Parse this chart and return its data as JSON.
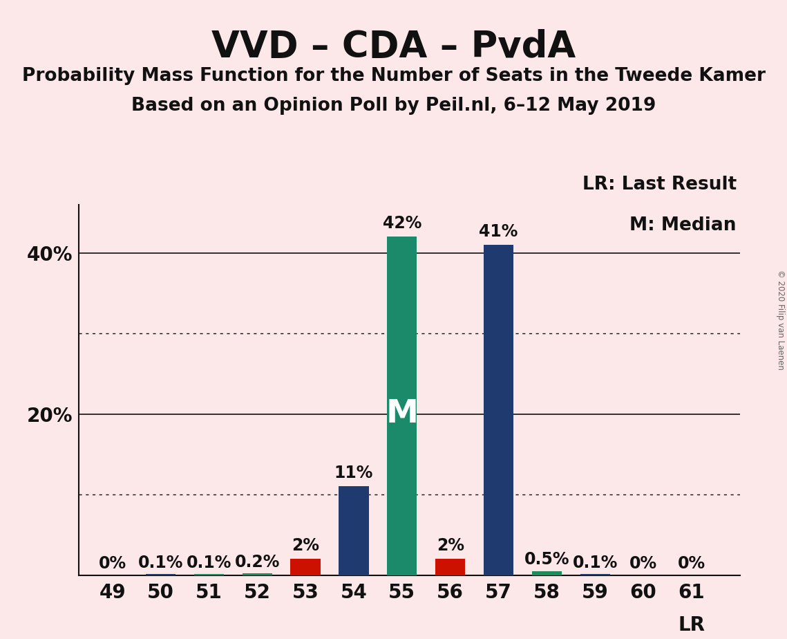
{
  "title": "VVD – CDA – PvdA",
  "subtitle1": "Probability Mass Function for the Number of Seats in the Tweede Kamer",
  "subtitle2": "Based on an Opinion Poll by Peil.nl, 6–12 May 2019",
  "copyright": "© 2020 Filip van Laenen",
  "legend_line1": "LR: Last Result",
  "legend_line2": "M: Median",
  "lr_label": "LR",
  "background_color": "#fce8e8",
  "seats": [
    49,
    50,
    51,
    52,
    53,
    54,
    55,
    56,
    57,
    58,
    59,
    60,
    61
  ],
  "values": [
    0.0,
    0.001,
    0.001,
    0.002,
    0.02,
    0.11,
    0.42,
    0.02,
    0.41,
    0.005,
    0.001,
    0.0,
    0.0
  ],
  "labels": [
    "0%",
    "0.1%",
    "0.1%",
    "0.2%",
    "2%",
    "11%",
    "42%",
    "2%",
    "41%",
    "0.5%",
    "0.1%",
    "0%",
    "0%"
  ],
  "bar_colors": [
    "#1e3a6e",
    "#1e3a6e",
    "#1e8c5a",
    "#1e8c5a",
    "#cc1100",
    "#1e3a6e",
    "#1a8a6a",
    "#cc1100",
    "#1e3a6e",
    "#1e8c5a",
    "#1e3a6e",
    "#1e3a6e",
    "#1e3a6e"
  ],
  "median_seat": 55,
  "median_label": "M",
  "ylim": [
    0,
    0.46
  ],
  "solid_yticks": [
    0.2,
    0.4
  ],
  "dotted_yticks": [
    0.1,
    0.3
  ],
  "title_fontsize": 38,
  "subtitle_fontsize": 19,
  "label_fontsize": 17,
  "tick_fontsize": 20,
  "legend_fontsize": 19,
  "median_fontsize": 34,
  "lr_fontsize": 20,
  "bar_width": 0.62
}
